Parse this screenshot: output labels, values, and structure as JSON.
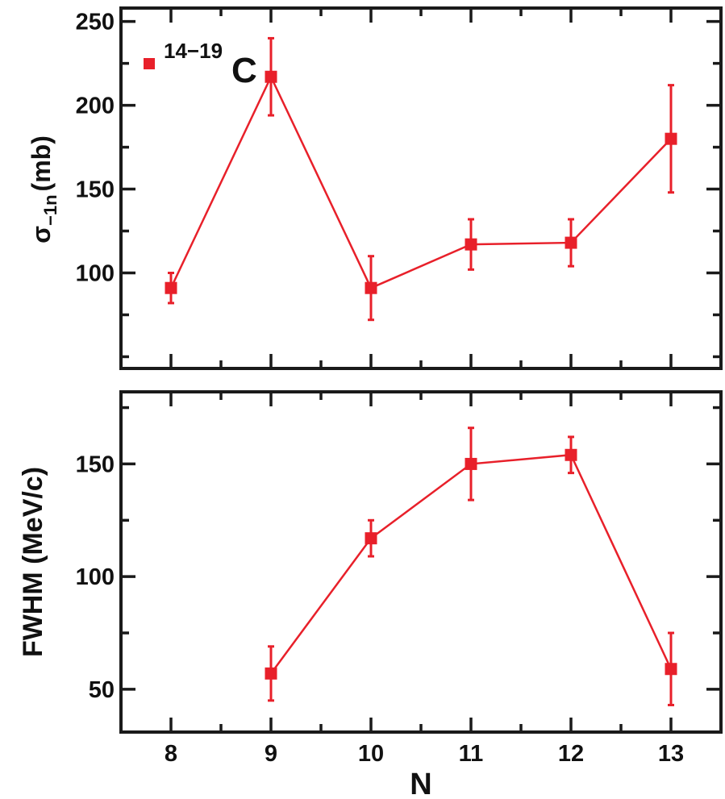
{
  "chart_data": [
    {
      "type": "line",
      "panel": "top",
      "ylabel_main": "σ",
      "ylabel_sub": "−1n",
      "ylabel_unit": "(mb)",
      "xlim": [
        7.5,
        13.5
      ],
      "ylim": [
        43,
        258
      ],
      "yticks": [
        100,
        150,
        200,
        250
      ],
      "legend": {
        "placement": "top-left",
        "label_sup": "14−19",
        "label_main": "C"
      },
      "series": [
        {
          "color": "#e8202a",
          "points": [
            {
              "x": 8,
              "y": 91,
              "err": 9
            },
            {
              "x": 9,
              "y": 217,
              "err": 23
            },
            {
              "x": 10,
              "y": 91,
              "err": 19
            },
            {
              "x": 11,
              "y": 117,
              "err": 15
            },
            {
              "x": 12,
              "y": 118,
              "err": 14
            },
            {
              "x": 13,
              "y": 180,
              "err": 32
            }
          ]
        }
      ]
    },
    {
      "type": "line",
      "panel": "bottom",
      "ylabel": "FWHM (MeV/c)",
      "xlabel": "N",
      "xlim": [
        7.5,
        13.5
      ],
      "ylim": [
        31,
        182
      ],
      "yticks": [
        50,
        100,
        150
      ],
      "xticks": [
        8,
        9,
        10,
        11,
        12,
        13
      ],
      "series": [
        {
          "color": "#e8202a",
          "points": [
            {
              "x": 9,
              "y": 57,
              "err": 12
            },
            {
              "x": 10,
              "y": 117,
              "err": 8
            },
            {
              "x": 11,
              "y": 150,
              "err": 16
            },
            {
              "x": 12,
              "y": 154,
              "err": 8
            },
            {
              "x": 13,
              "y": 59,
              "err": 16
            }
          ]
        }
      ]
    }
  ]
}
